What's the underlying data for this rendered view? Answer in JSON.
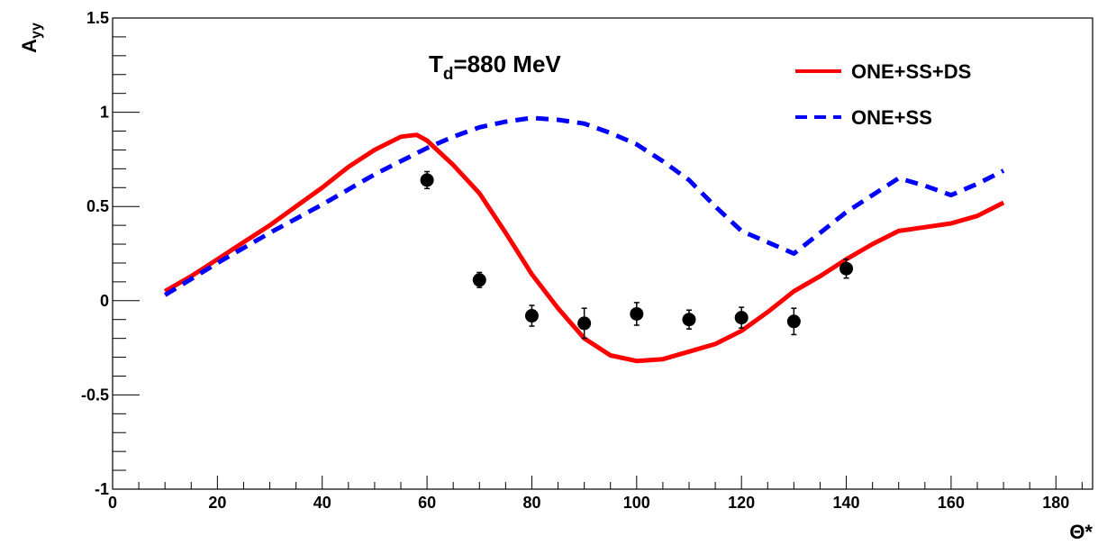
{
  "chart_data": {
    "type": "line",
    "title": "",
    "xlabel": "Θ*",
    "ylabel": {
      "main": "A",
      "sub": "yy"
    },
    "xlim": [
      0,
      187
    ],
    "ylim": [
      -1,
      1.5
    ],
    "x_ticks": [
      0,
      20,
      40,
      60,
      80,
      100,
      120,
      140,
      160,
      180
    ],
    "x_tick_labels": [
      "0",
      "20",
      "40",
      "60",
      "80",
      "100",
      "120",
      "140",
      "160",
      "180"
    ],
    "y_ticks": [
      -1,
      -0.5,
      0,
      0.5,
      1,
      1.5
    ],
    "y_tick_labels": [
      "-1",
      "-0.5",
      "0",
      "0.5",
      "1",
      "1.5"
    ],
    "annotation": {
      "main": "T",
      "sub": "d",
      "rest": "=880 MeV"
    },
    "legend_position": "top-right",
    "grid": false,
    "series": [
      {
        "name": "ONE+SS+DS",
        "style": "solid",
        "color": "#ff0000",
        "x": [
          10,
          15,
          20,
          25,
          30,
          35,
          40,
          45,
          50,
          55,
          58,
          60,
          65,
          70,
          75,
          80,
          85,
          90,
          95,
          100,
          105,
          110,
          115,
          120,
          125,
          130,
          135,
          140,
          145,
          150,
          155,
          160,
          165,
          170
        ],
        "y": [
          0.05,
          0.13,
          0.22,
          0.31,
          0.4,
          0.5,
          0.6,
          0.71,
          0.8,
          0.87,
          0.88,
          0.85,
          0.72,
          0.57,
          0.36,
          0.14,
          -0.04,
          -0.2,
          -0.29,
          -0.32,
          -0.31,
          -0.27,
          -0.23,
          -0.16,
          -0.06,
          0.05,
          0.13,
          0.22,
          0.3,
          0.37,
          0.39,
          0.41,
          0.45,
          0.52
        ]
      },
      {
        "name": "ONE+SS",
        "style": "dashed",
        "color": "#0000ff",
        "x": [
          10,
          20,
          30,
          40,
          50,
          60,
          65,
          70,
          75,
          80,
          85,
          90,
          95,
          100,
          105,
          110,
          115,
          120,
          125,
          130,
          135,
          140,
          145,
          150,
          155,
          160,
          165,
          170
        ],
        "y": [
          0.03,
          0.2,
          0.36,
          0.51,
          0.67,
          0.81,
          0.87,
          0.92,
          0.95,
          0.97,
          0.96,
          0.94,
          0.89,
          0.83,
          0.74,
          0.64,
          0.5,
          0.37,
          0.31,
          0.25,
          0.36,
          0.47,
          0.56,
          0.65,
          0.61,
          0.56,
          0.62,
          0.69
        ]
      }
    ],
    "points": {
      "marker": "filled-circle",
      "color": "#000000",
      "x": [
        60,
        70,
        80,
        90,
        100,
        110,
        120,
        130,
        140
      ],
      "y": [
        0.64,
        0.11,
        -0.08,
        -0.12,
        -0.07,
        -0.1,
        -0.09,
        -0.11,
        0.17
      ],
      "err": [
        0.045,
        0.04,
        0.055,
        0.08,
        0.06,
        0.05,
        0.055,
        0.07,
        0.05
      ]
    }
  }
}
